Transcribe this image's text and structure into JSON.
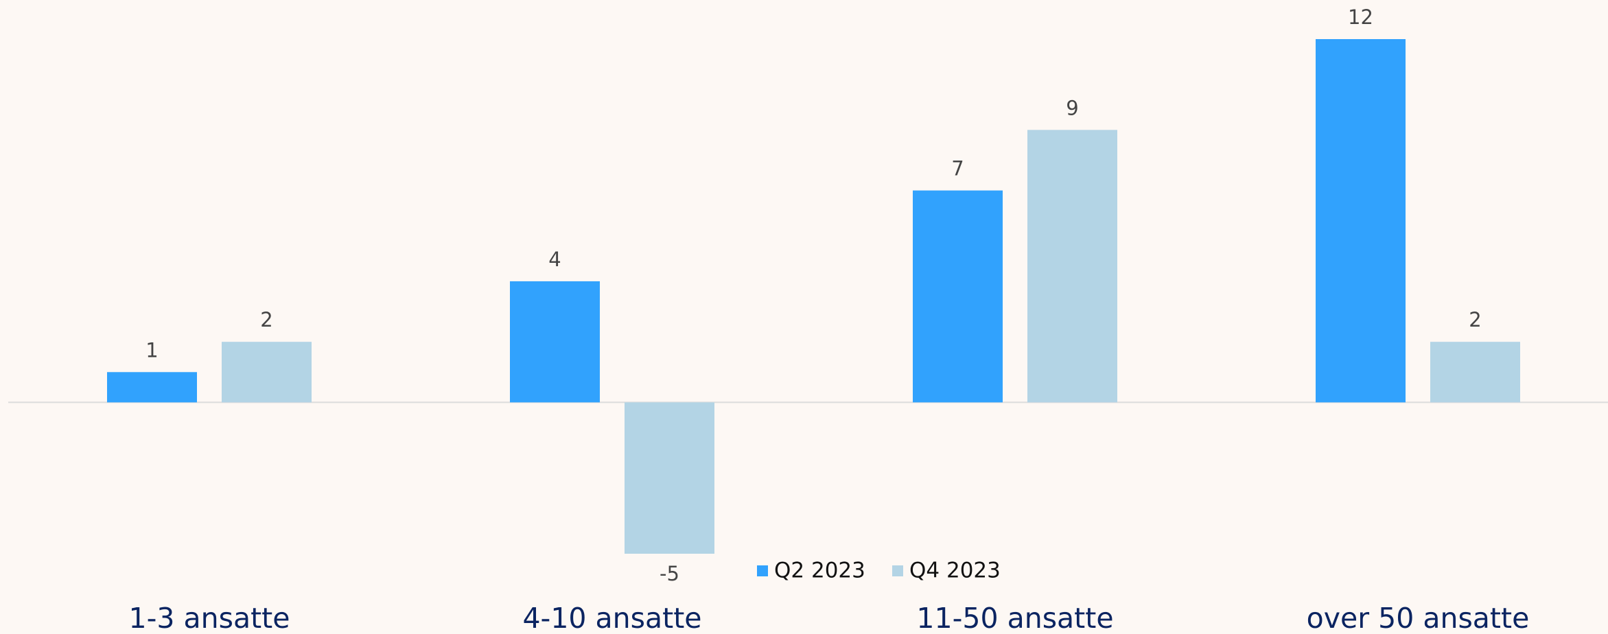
{
  "chart_data": {
    "type": "bar",
    "categories": [
      "1-3 ansatte",
      "4-10 ansatte",
      "11-50 ansatte",
      "over 50 ansatte"
    ],
    "series": [
      {
        "name": "Q2 2023",
        "color": "#31a2fd",
        "values": [
          1,
          4,
          7,
          12
        ]
      },
      {
        "name": "Q4 2023",
        "color": "#b3d4e5",
        "values": [
          2,
          -5,
          9,
          2
        ]
      }
    ],
    "ylim": [
      -5,
      12
    ],
    "legend": "bottom"
  }
}
